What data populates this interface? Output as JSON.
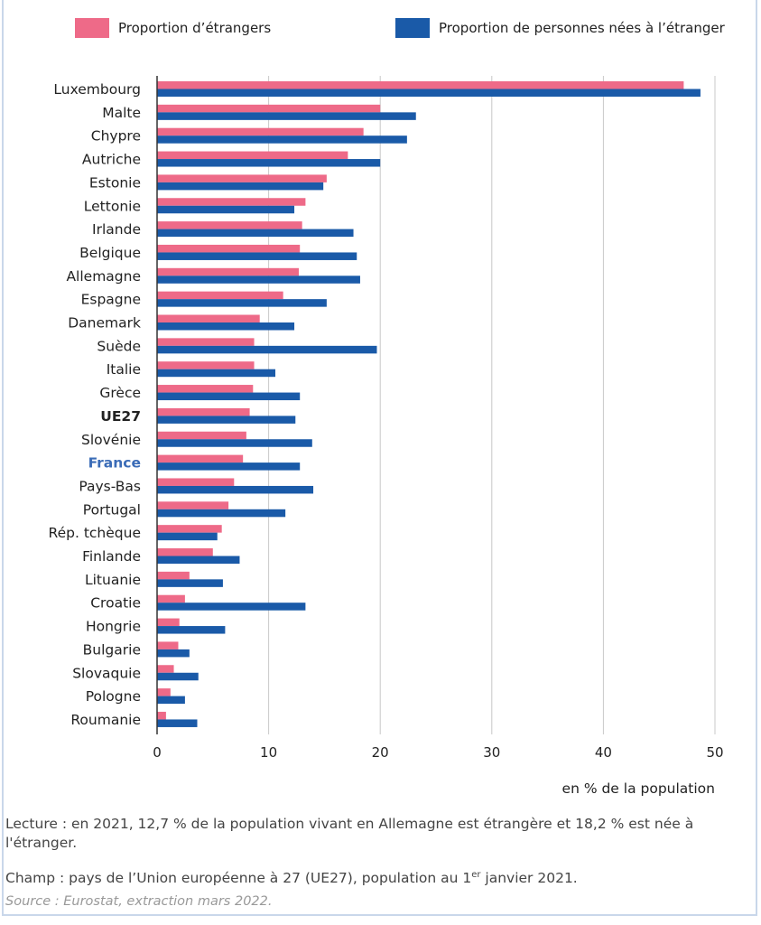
{
  "legend": {
    "foreign_label": "Proportion d’étrangers",
    "born_abroad_label": "Proportion de personnes nées à l’étranger"
  },
  "colors": {
    "foreign": "#ee6a88",
    "born_abroad": "#1a5aa8",
    "france_label": "#3b6cb7",
    "grid": "#c8c8c8",
    "axis": "#333333"
  },
  "chart_data": {
    "type": "bar",
    "orientation": "horizontal",
    "categories": [
      "Luxembourg",
      "Malte",
      "Chypre",
      "Autriche",
      "Estonie",
      "Lettonie",
      "Irlande",
      "Belgique",
      "Allemagne",
      "Espagne",
      "Danemark",
      "Suède",
      "Italie",
      "Grèce",
      "UE27",
      "Slovénie",
      "France",
      "Pays-Bas",
      "Portugal",
      "Rép. tchèque",
      "Finlande",
      "Lituanie",
      "Croatie",
      "Hongrie",
      "Bulgarie",
      "Slovaquie",
      "Pologne",
      "Roumanie"
    ],
    "highlight": {
      "UE27": "bold",
      "France": "bold-blue"
    },
    "series": [
      {
        "name": "Proportion d’étrangers",
        "values": [
          47.2,
          20.0,
          18.5,
          17.1,
          15.2,
          13.3,
          13.0,
          12.8,
          12.7,
          11.3,
          9.2,
          8.7,
          8.7,
          8.6,
          8.3,
          8.0,
          7.7,
          6.9,
          6.4,
          5.8,
          5.0,
          2.9,
          2.5,
          2.0,
          1.9,
          1.5,
          1.2,
          0.8
        ]
      },
      {
        "name": "Proportion de personnes nées à l’étranger",
        "values": [
          48.7,
          23.2,
          22.4,
          20.0,
          14.9,
          12.3,
          17.6,
          17.9,
          18.2,
          15.2,
          12.3,
          19.7,
          10.6,
          12.8,
          12.4,
          13.9,
          12.8,
          14.0,
          11.5,
          5.4,
          7.4,
          5.9,
          13.3,
          6.1,
          2.9,
          3.7,
          2.5,
          3.6
        ]
      }
    ],
    "xlim": [
      0,
      50
    ],
    "xticks": [
      0,
      10,
      20,
      30,
      40,
      50
    ],
    "xlabel": "en % de la population",
    "grid": true,
    "legend_position": "top"
  },
  "notes": {
    "lecture": "Lecture : en 2021, 12,7 % de la population vivant en Allemagne est étrangère et 18,2 % est née à l'étranger.",
    "champ_before": "Champ : pays de l’Union européenne à 27 (UE27), population au 1",
    "champ_sup": "er",
    "champ_after": " janvier 2021.",
    "source": "Source : Eurostat, extraction mars 2022."
  }
}
